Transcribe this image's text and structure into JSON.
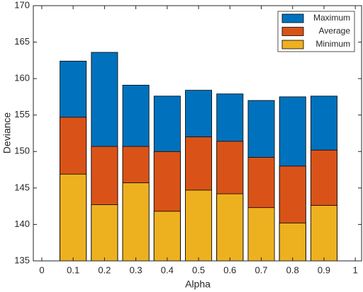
{
  "chart_data": {
    "type": "bar",
    "xlabel": "Alpha",
    "ylabel": "Deviance",
    "x": [
      0.1,
      0.2,
      0.3,
      0.4,
      0.5,
      0.6,
      0.7,
      0.8,
      0.9
    ],
    "series": [
      {
        "name": "Maximum",
        "color": "#0072bd",
        "values": [
          162.4,
          163.6,
          159.1,
          157.6,
          158.4,
          157.9,
          157.0,
          157.5,
          157.6
        ]
      },
      {
        "name": "Average",
        "color": "#d95319",
        "values": [
          154.7,
          150.7,
          150.7,
          150.0,
          152.0,
          151.4,
          149.2,
          148.0,
          150.2
        ]
      },
      {
        "name": "Minimum",
        "color": "#edb120",
        "values": [
          146.9,
          142.7,
          145.7,
          141.8,
          144.7,
          144.2,
          142.3,
          140.2,
          142.6
        ]
      }
    ],
    "xlim": [
      -0.027,
      1.02
    ],
    "xticks": [
      0,
      0.1,
      0.2,
      0.3,
      0.4,
      0.5,
      0.6,
      0.7,
      0.8,
      0.9,
      1
    ],
    "ylim": [
      135,
      170
    ],
    "yticks": [
      135,
      140,
      145,
      150,
      155,
      160,
      165,
      170
    ],
    "legend": "top-right"
  }
}
